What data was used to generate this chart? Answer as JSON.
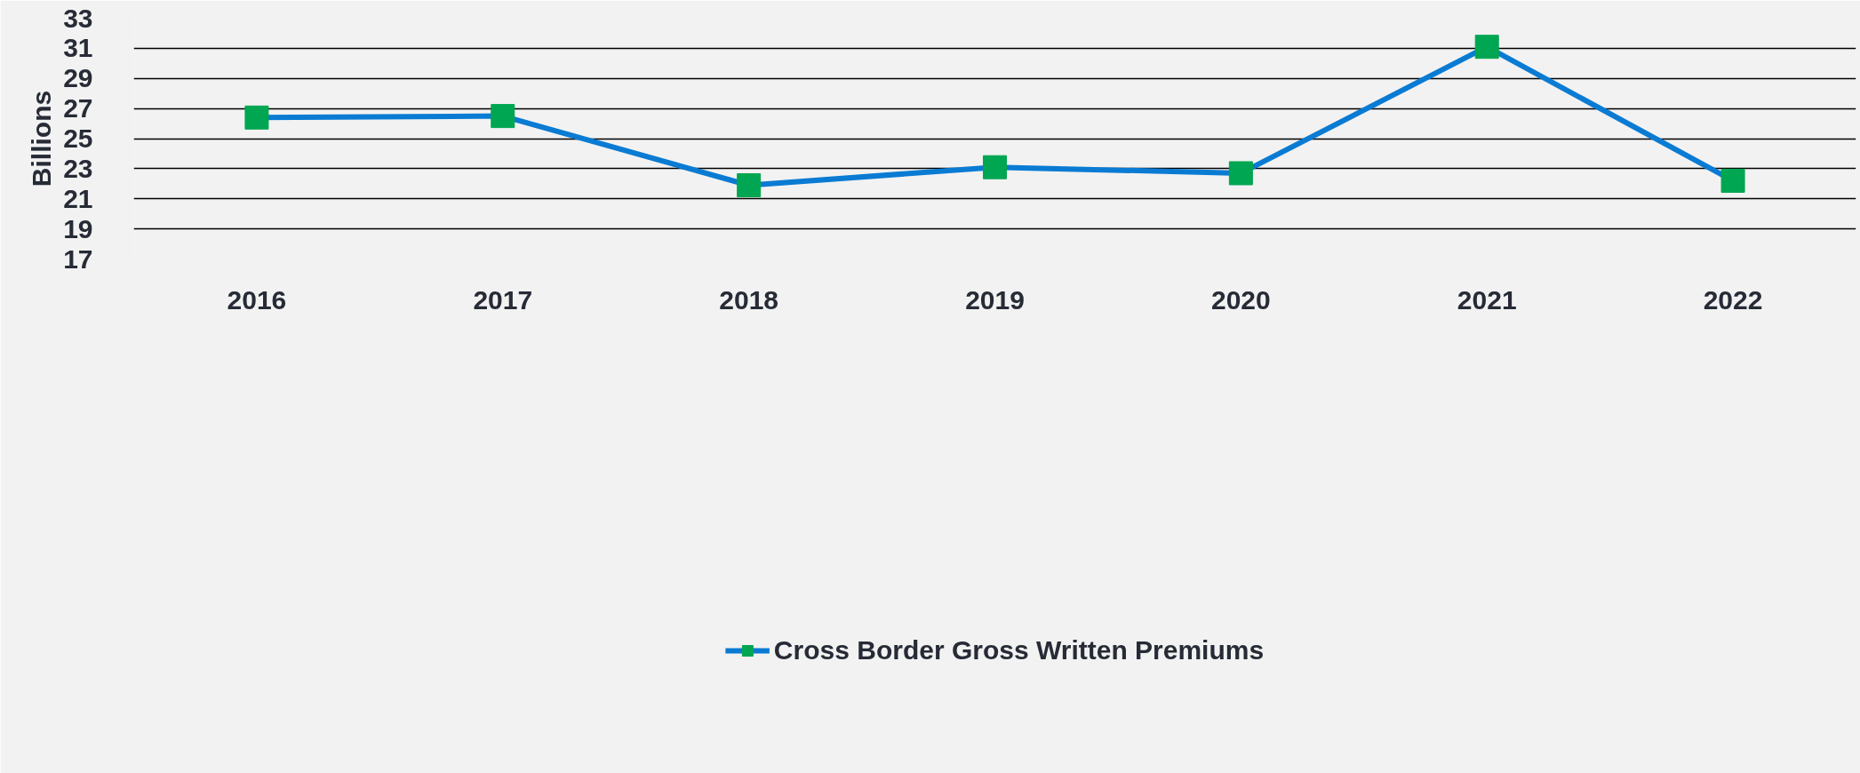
{
  "chart_data": {
    "type": "line",
    "ylabel": "Billions",
    "categories": [
      "2016",
      "2017",
      "2018",
      "2019",
      "2020",
      "2021",
      "2022"
    ],
    "series": [
      {
        "name": "Cross Border Gross Written Premiums",
        "color": "#0a7bd3",
        "colors": [
          "#00a651",
          "#00a651",
          "#00a651",
          "#00a651",
          "#00a651",
          "#00a651",
          "#00a651"
        ],
        "values": [
          26.4,
          26.5,
          21.9,
          23.1,
          22.7,
          31.1,
          22.2
        ]
      }
    ],
    "ylim": [
      17,
      33
    ],
    "yticks": [
      17,
      19,
      21,
      23,
      25,
      27,
      29,
      31,
      33
    ],
    "grid": "y",
    "legend": "bottom",
    "marker": "square",
    "line_style": "solid"
  }
}
